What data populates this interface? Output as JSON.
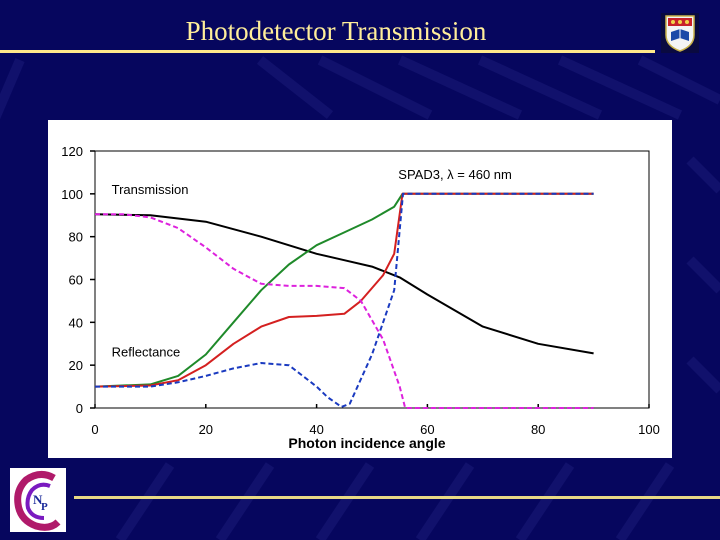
{
  "slide": {
    "title": "Photodetector Transmission"
  },
  "icons": {
    "crest": "university-crest-icon",
    "logo": "imp-logo-icon"
  },
  "colors": {
    "background": "#06065e",
    "title_text": "#ffee9a",
    "rule": "#ffe88a"
  },
  "chart_data": {
    "type": "line",
    "annotation": "SPAD3,  λ = 460 nm",
    "xlabel": "Photon incidence angle",
    "ylabel": "",
    "xlim": [
      0,
      100
    ],
    "ylim": [
      0,
      120
    ],
    "xticks": [
      0,
      20,
      40,
      60,
      80,
      100
    ],
    "yticks": [
      0,
      20,
      40,
      60,
      80,
      100,
      120
    ],
    "grid": false,
    "region_labels": [
      {
        "text": "Transmission",
        "x": 3,
        "y": 100
      },
      {
        "text": "Reflectance",
        "x": 3,
        "y": 24
      }
    ],
    "series": [
      {
        "color": "#000000",
        "dash": "solid",
        "x": [
          0,
          10,
          20,
          30,
          40,
          45,
          50,
          55,
          60,
          70,
          80,
          90
        ],
        "y": [
          90.5,
          90,
          87,
          80,
          72,
          69,
          66,
          61,
          53,
          38,
          30,
          25.5
        ]
      },
      {
        "color": "#1f8a2a",
        "dash": "solid",
        "x": [
          0,
          10,
          15,
          20,
          25,
          30,
          35,
          40,
          45,
          50,
          54,
          55.5,
          55.6,
          60,
          70,
          80,
          90
        ],
        "y": [
          10,
          11,
          15,
          25,
          40,
          55,
          67,
          76,
          82,
          88,
          94,
          100,
          100,
          100,
          100,
          100,
          100
        ]
      },
      {
        "color": "#d42020",
        "dash": "solid",
        "x": [
          0,
          10,
          15,
          20,
          25,
          30,
          35,
          40,
          45,
          48,
          52,
          54,
          55.5,
          55.6,
          60,
          70,
          80,
          90
        ],
        "y": [
          10,
          10.5,
          13,
          20,
          30,
          38,
          42.5,
          43,
          44,
          50,
          62,
          72,
          100,
          100,
          100,
          100,
          100,
          100
        ]
      },
      {
        "color": "#dd22dd",
        "dash": "dash",
        "x": [
          0,
          5,
          10,
          15,
          20,
          25,
          30,
          35,
          40,
          45,
          48,
          52,
          55,
          56,
          60,
          70,
          80,
          90
        ],
        "y": [
          90.5,
          90.5,
          89,
          84,
          75,
          65,
          58,
          57,
          57,
          56,
          50,
          32,
          10,
          0,
          0,
          0,
          0,
          0
        ]
      },
      {
        "color": "#1a3ac0",
        "dash": "dash",
        "x": [
          0,
          10,
          15,
          20,
          25,
          30,
          35,
          40,
          42,
          44.5,
          46,
          50,
          54,
          55.6,
          60,
          70,
          80,
          90
        ],
        "y": [
          10,
          10,
          12,
          15,
          18.5,
          21,
          20,
          10,
          5,
          0.5,
          2,
          25,
          55,
          100,
          100,
          100,
          100,
          100
        ]
      }
    ]
  }
}
